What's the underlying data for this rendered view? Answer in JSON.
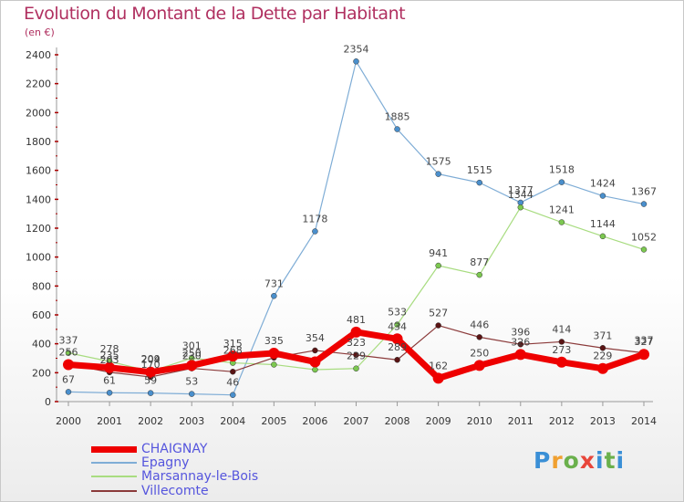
{
  "title": "Evolution du Montant de la Dette par Habitant",
  "subtitle": "(en €)",
  "logo_text": "Proxiti",
  "chart_data": {
    "type": "line",
    "title": "Evolution du Montant de la Dette par Habitant",
    "subtitle": "(en €)",
    "x": [
      "2000",
      "2001",
      "2002",
      "2003",
      "2004",
      "2005",
      "2006",
      "2007",
      "2008",
      "2009",
      "2010",
      "2011",
      "2012",
      "2013",
      "2014"
    ],
    "yticks": [
      "0",
      "200",
      "400",
      "600",
      "800",
      "1000",
      "1200",
      "1400",
      "1600",
      "1800",
      "2000",
      "2200",
      "2400"
    ],
    "ylim": [
      0,
      2400
    ],
    "grid": false,
    "legend_position": "bottom-left",
    "series": [
      {
        "name": "Epagny",
        "color": "#7fadd6",
        "marker": "#4a8fcc",
        "width": 1.2,
        "values": [
          67,
          61,
          59,
          53,
          46,
          731,
          1178,
          2354,
          1885,
          1575,
          1515,
          1377,
          1518,
          1424,
          1367
        ],
        "labels": [
          "67",
          "61",
          "59",
          "53",
          "46",
          "731",
          "1178",
          "2354",
          "1885",
          "1575",
          "1515",
          "1377",
          "1518",
          "1424",
          "1367"
        ]
      },
      {
        "name": "Marsannay-le-Bois",
        "color": "#a8dc80",
        "marker": "#7cc850",
        "width": 1.2,
        "values": [
          337,
          278,
          209,
          301,
          268,
          256,
          221,
          229,
          533,
          941,
          877,
          1344,
          1241,
          1144,
          1052
        ],
        "labels": [
          "337",
          "278",
          "209",
          "301",
          "268",
          "",
          "",
          "229",
          "533",
          "941",
          "877",
          "1344",
          "1241",
          "1144",
          "1052"
        ]
      },
      {
        "name": "Villecomte",
        "color": "#8b3a3a",
        "marker": "#5a1414",
        "width": 1.2,
        "values": [
          260,
          203,
          170,
          230,
          207,
          304,
          354,
          323,
          289,
          527,
          446,
          396,
          414,
          371,
          337
        ],
        "labels": [
          "",
          "203",
          "170",
          "230",
          "",
          "",
          "354",
          "323",
          "289",
          "527",
          "446",
          "396",
          "414",
          "371",
          "337"
        ]
      },
      {
        "name": "CHAIGNAY",
        "color": "#ee0000",
        "marker": "#ee0000",
        "width": 7,
        "values": [
          256,
          235,
          204,
          250,
          315,
          335,
          275,
          481,
          434,
          162,
          250,
          326,
          273,
          229,
          327
        ],
        "labels": [
          "256",
          "235",
          "204",
          "250",
          "315",
          "335",
          "",
          "481",
          "434",
          "162",
          "250",
          "326",
          "273",
          "229",
          "327"
        ]
      }
    ]
  },
  "legend": [
    {
      "name": "CHAIGNAY",
      "color": "#ee0000",
      "height": 7
    },
    {
      "name": "Epagny",
      "color": "#7fadd6",
      "height": 2
    },
    {
      "name": "Marsannay-le-Bois",
      "color": "#a8dc80",
      "height": 2
    },
    {
      "name": "Villecomte",
      "color": "#8b3a3a",
      "height": 2
    }
  ]
}
